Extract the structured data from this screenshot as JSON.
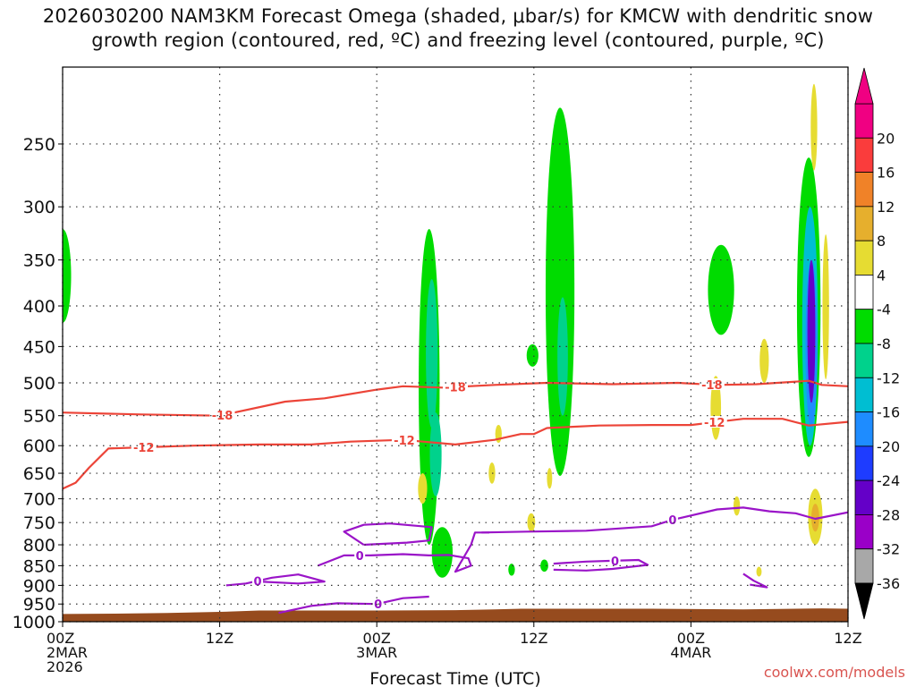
{
  "title": {
    "line1": "2026030200 NAM3KM Forecast Omega (shaded, μbar/s) for KMCW with dendritic snow",
    "line2": "growth region (contoured, red, ºC) and freezing level (contoured, purple, ºC)"
  },
  "credit": "coolwx.com/models",
  "chart_data": {
    "type": "heatmap",
    "xlabel": "Forecast Time (UTC)",
    "ylabel": "",
    "x_unit": "hours since 00Z 2MAR 2026",
    "xlim": [
      0,
      60
    ],
    "ylim": [
      1000,
      200
    ],
    "y_scale": "log-pressure",
    "x_ticks": [
      {
        "x": 0,
        "label": "00Z",
        "sub": [
          "2MAR",
          "2026"
        ]
      },
      {
        "x": 12,
        "label": "12Z",
        "sub": []
      },
      {
        "x": 24,
        "label": "00Z",
        "sub": [
          "3MAR"
        ]
      },
      {
        "x": 36,
        "label": "12Z",
        "sub": []
      },
      {
        "x": 48,
        "label": "00Z",
        "sub": [
          "4MAR"
        ]
      },
      {
        "x": 60,
        "label": "12Z",
        "sub": []
      }
    ],
    "y_ticks": [
      250,
      300,
      350,
      400,
      450,
      500,
      550,
      600,
      650,
      700,
      750,
      800,
      850,
      900,
      950,
      1000
    ],
    "grid": true,
    "colorbar": {
      "levels": [
        -36,
        -32,
        -28,
        -24,
        -20,
        -16,
        -12,
        -8,
        -4,
        4,
        8,
        12,
        16,
        20
      ],
      "colors": [
        "#a8a8a8",
        "#9a00c8",
        "#6400c8",
        "#1e3cff",
        "#1e8cff",
        "#00bed2",
        "#00d28c",
        "#00dc00",
        "#ffffff",
        "#e6dc32",
        "#e6af2d",
        "#f08228",
        "#fa3c3c",
        "#f00082"
      ],
      "under_color": "#000000",
      "over_color": "#f00082"
    },
    "omega_regions": [
      {
        "x": 0,
        "cy": 370,
        "h": 100,
        "w": 1.3,
        "value": -6
      },
      {
        "x": 28,
        "cy": 560,
        "h": 480,
        "w": 1.6,
        "value": -7
      },
      {
        "x": 28.2,
        "cy": 470,
        "h": 200,
        "w": 0.9,
        "value": -11
      },
      {
        "x": 28.5,
        "cy": 620,
        "h": 150,
        "w": 0.9,
        "value": -12
      },
      {
        "x": 29,
        "cy": 820,
        "h": 120,
        "w": 1.6,
        "value": -6
      },
      {
        "x": 35.9,
        "cy": 462,
        "h": 30,
        "w": 0.9,
        "value": -6
      },
      {
        "x": 38,
        "cy": 440,
        "h": 430,
        "w": 2.2,
        "value": -7
      },
      {
        "x": 38.2,
        "cy": 470,
        "h": 160,
        "w": 0.8,
        "value": -10
      },
      {
        "x": 50.3,
        "cy": 385,
        "h": 100,
        "w": 2.0,
        "value": -6
      },
      {
        "x": 57,
        "cy": 440,
        "h": 360,
        "w": 1.8,
        "value": -7
      },
      {
        "x": 57.1,
        "cy": 450,
        "h": 300,
        "w": 1.2,
        "value": -14
      },
      {
        "x": 57.2,
        "cy": 460,
        "h": 220,
        "w": 0.9,
        "value": -20
      },
      {
        "x": 57.2,
        "cy": 440,
        "h": 180,
        "w": 0.6,
        "value": -28
      },
      {
        "x": 57.4,
        "cy": 240,
        "h": 60,
        "w": 0.5,
        "value": 5
      },
      {
        "x": 58.3,
        "cy": 410,
        "h": 170,
        "w": 0.5,
        "value": 5
      },
      {
        "x": 57.5,
        "cy": 740,
        "h": 120,
        "w": 1.1,
        "value": 6
      },
      {
        "x": 57.5,
        "cy": 740,
        "h": 60,
        "w": 0.6,
        "value": 10
      },
      {
        "x": 49.9,
        "cy": 540,
        "h": 100,
        "w": 0.8,
        "value": 5
      },
      {
        "x": 53.6,
        "cy": 470,
        "h": 60,
        "w": 0.7,
        "value": 5
      },
      {
        "x": 27.5,
        "cy": 680,
        "h": 60,
        "w": 0.7,
        "value": 6
      },
      {
        "x": 33.3,
        "cy": 580,
        "h": 30,
        "w": 0.5,
        "value": 5
      },
      {
        "x": 32.8,
        "cy": 650,
        "h": 40,
        "w": 0.5,
        "value": 5
      },
      {
        "x": 37.2,
        "cy": 660,
        "h": 40,
        "w": 0.4,
        "value": 5
      },
      {
        "x": 35.8,
        "cy": 750,
        "h": 40,
        "w": 0.6,
        "value": 5
      },
      {
        "x": 51.5,
        "cy": 715,
        "h": 40,
        "w": 0.5,
        "value": 5
      },
      {
        "x": 53.2,
        "cy": 865,
        "h": 25,
        "w": 0.4,
        "value": 5
      },
      {
        "x": 34.3,
        "cy": 860,
        "h": 30,
        "w": 0.5,
        "value": -7
      },
      {
        "x": 36.8,
        "cy": 850,
        "h": 30,
        "w": 0.6,
        "value": -7
      }
    ],
    "dgz_contours": [
      {
        "label": "-18",
        "label_x": [
          12.2,
          30,
          49.6
        ],
        "points": [
          [
            0,
            545
          ],
          [
            6,
            548
          ],
          [
            12,
            550
          ],
          [
            17,
            528
          ],
          [
            20,
            523
          ],
          [
            24,
            510
          ],
          [
            26,
            505
          ],
          [
            29,
            507
          ],
          [
            33,
            503
          ],
          [
            37,
            500
          ],
          [
            42,
            502
          ],
          [
            47,
            500
          ],
          [
            50,
            503
          ],
          [
            53,
            502
          ],
          [
            57,
            497
          ],
          [
            58,
            503
          ],
          [
            60,
            505
          ]
        ]
      },
      {
        "label": "-12",
        "label_x": [
          6.2,
          26.1,
          49.8
        ],
        "points": [
          [
            0,
            680
          ],
          [
            1,
            668
          ],
          [
            2,
            640
          ],
          [
            3.5,
            605
          ],
          [
            6,
            603
          ],
          [
            10,
            600
          ],
          [
            15,
            598
          ],
          [
            19,
            598
          ],
          [
            22,
            593
          ],
          [
            26,
            590
          ],
          [
            30,
            598
          ],
          [
            33,
            590
          ],
          [
            35,
            580
          ],
          [
            36,
            580
          ],
          [
            37,
            570
          ],
          [
            41,
            566
          ],
          [
            45,
            565
          ],
          [
            48,
            565
          ],
          [
            52,
            555
          ],
          [
            55,
            555
          ],
          [
            57,
            566
          ],
          [
            60,
            560
          ]
        ]
      }
    ],
    "freezing_contours": [
      {
        "label": "0",
        "label_x": [
          46.6
        ],
        "points": [
          [
            32,
            772
          ],
          [
            35.5,
            770
          ],
          [
            40,
            768
          ],
          [
            45,
            758
          ],
          [
            46.6,
            744
          ],
          [
            50,
            722
          ],
          [
            52,
            718
          ],
          [
            54,
            726
          ],
          [
            56,
            730
          ],
          [
            57.5,
            742
          ],
          [
            60,
            728
          ]
        ]
      },
      {
        "label": "",
        "label_x": [],
        "points": [
          [
            23,
            800
          ],
          [
            26.3,
            795
          ],
          [
            28,
            790
          ],
          [
            28.2,
            760
          ],
          [
            25,
            752
          ],
          [
            23,
            755
          ],
          [
            21.5,
            770
          ],
          [
            23,
            800
          ]
        ]
      },
      {
        "label": "0",
        "label_x": [
          22.7
        ],
        "points": [
          [
            19.5,
            850
          ],
          [
            21.5,
            825
          ],
          [
            23.5,
            825
          ],
          [
            26,
            822
          ],
          [
            28,
            825
          ],
          [
            29.5,
            824
          ],
          [
            31,
            832
          ],
          [
            31.2,
            850
          ],
          [
            30,
            865
          ],
          [
            31.2,
            800
          ],
          [
            31.5,
            772
          ],
          [
            32.6,
            772
          ]
        ]
      },
      {
        "label": "0",
        "label_x": [
          14.9
        ],
        "points": [
          [
            12.5,
            900
          ],
          [
            14,
            895
          ],
          [
            16,
            880
          ],
          [
            18,
            872
          ],
          [
            20,
            890
          ],
          [
            18,
            895
          ],
          [
            15,
            890
          ]
        ]
      },
      {
        "label": "0",
        "label_x": [
          24.1
        ],
        "points": [
          [
            16.5,
            975
          ],
          [
            19,
            955
          ],
          [
            21,
            948
          ],
          [
            24,
            950
          ],
          [
            26,
            934
          ],
          [
            28,
            930
          ]
        ]
      },
      {
        "label": "0",
        "label_x": [
          42.2
        ],
        "points": [
          [
            37.5,
            845
          ],
          [
            40,
            840
          ],
          [
            42,
            838
          ],
          [
            44,
            836
          ],
          [
            44.7,
            848
          ],
          [
            42,
            858
          ],
          [
            40,
            862
          ],
          [
            37.5,
            860
          ]
        ]
      },
      {
        "label": "",
        "label_x": [],
        "points": [
          [
            52,
            870
          ],
          [
            52.8,
            888
          ],
          [
            53.8,
            905
          ],
          [
            52.5,
            898
          ]
        ]
      }
    ],
    "terrain_pressure": [
      [
        0,
        978
      ],
      [
        4,
        977
      ],
      [
        8,
        975
      ],
      [
        12,
        972
      ],
      [
        15,
        968
      ],
      [
        18,
        968
      ],
      [
        24,
        968
      ],
      [
        30,
        967
      ],
      [
        33,
        965
      ],
      [
        35,
        963
      ],
      [
        45,
        963
      ],
      [
        52,
        965
      ],
      [
        58,
        962
      ],
      [
        60,
        963
      ]
    ]
  }
}
